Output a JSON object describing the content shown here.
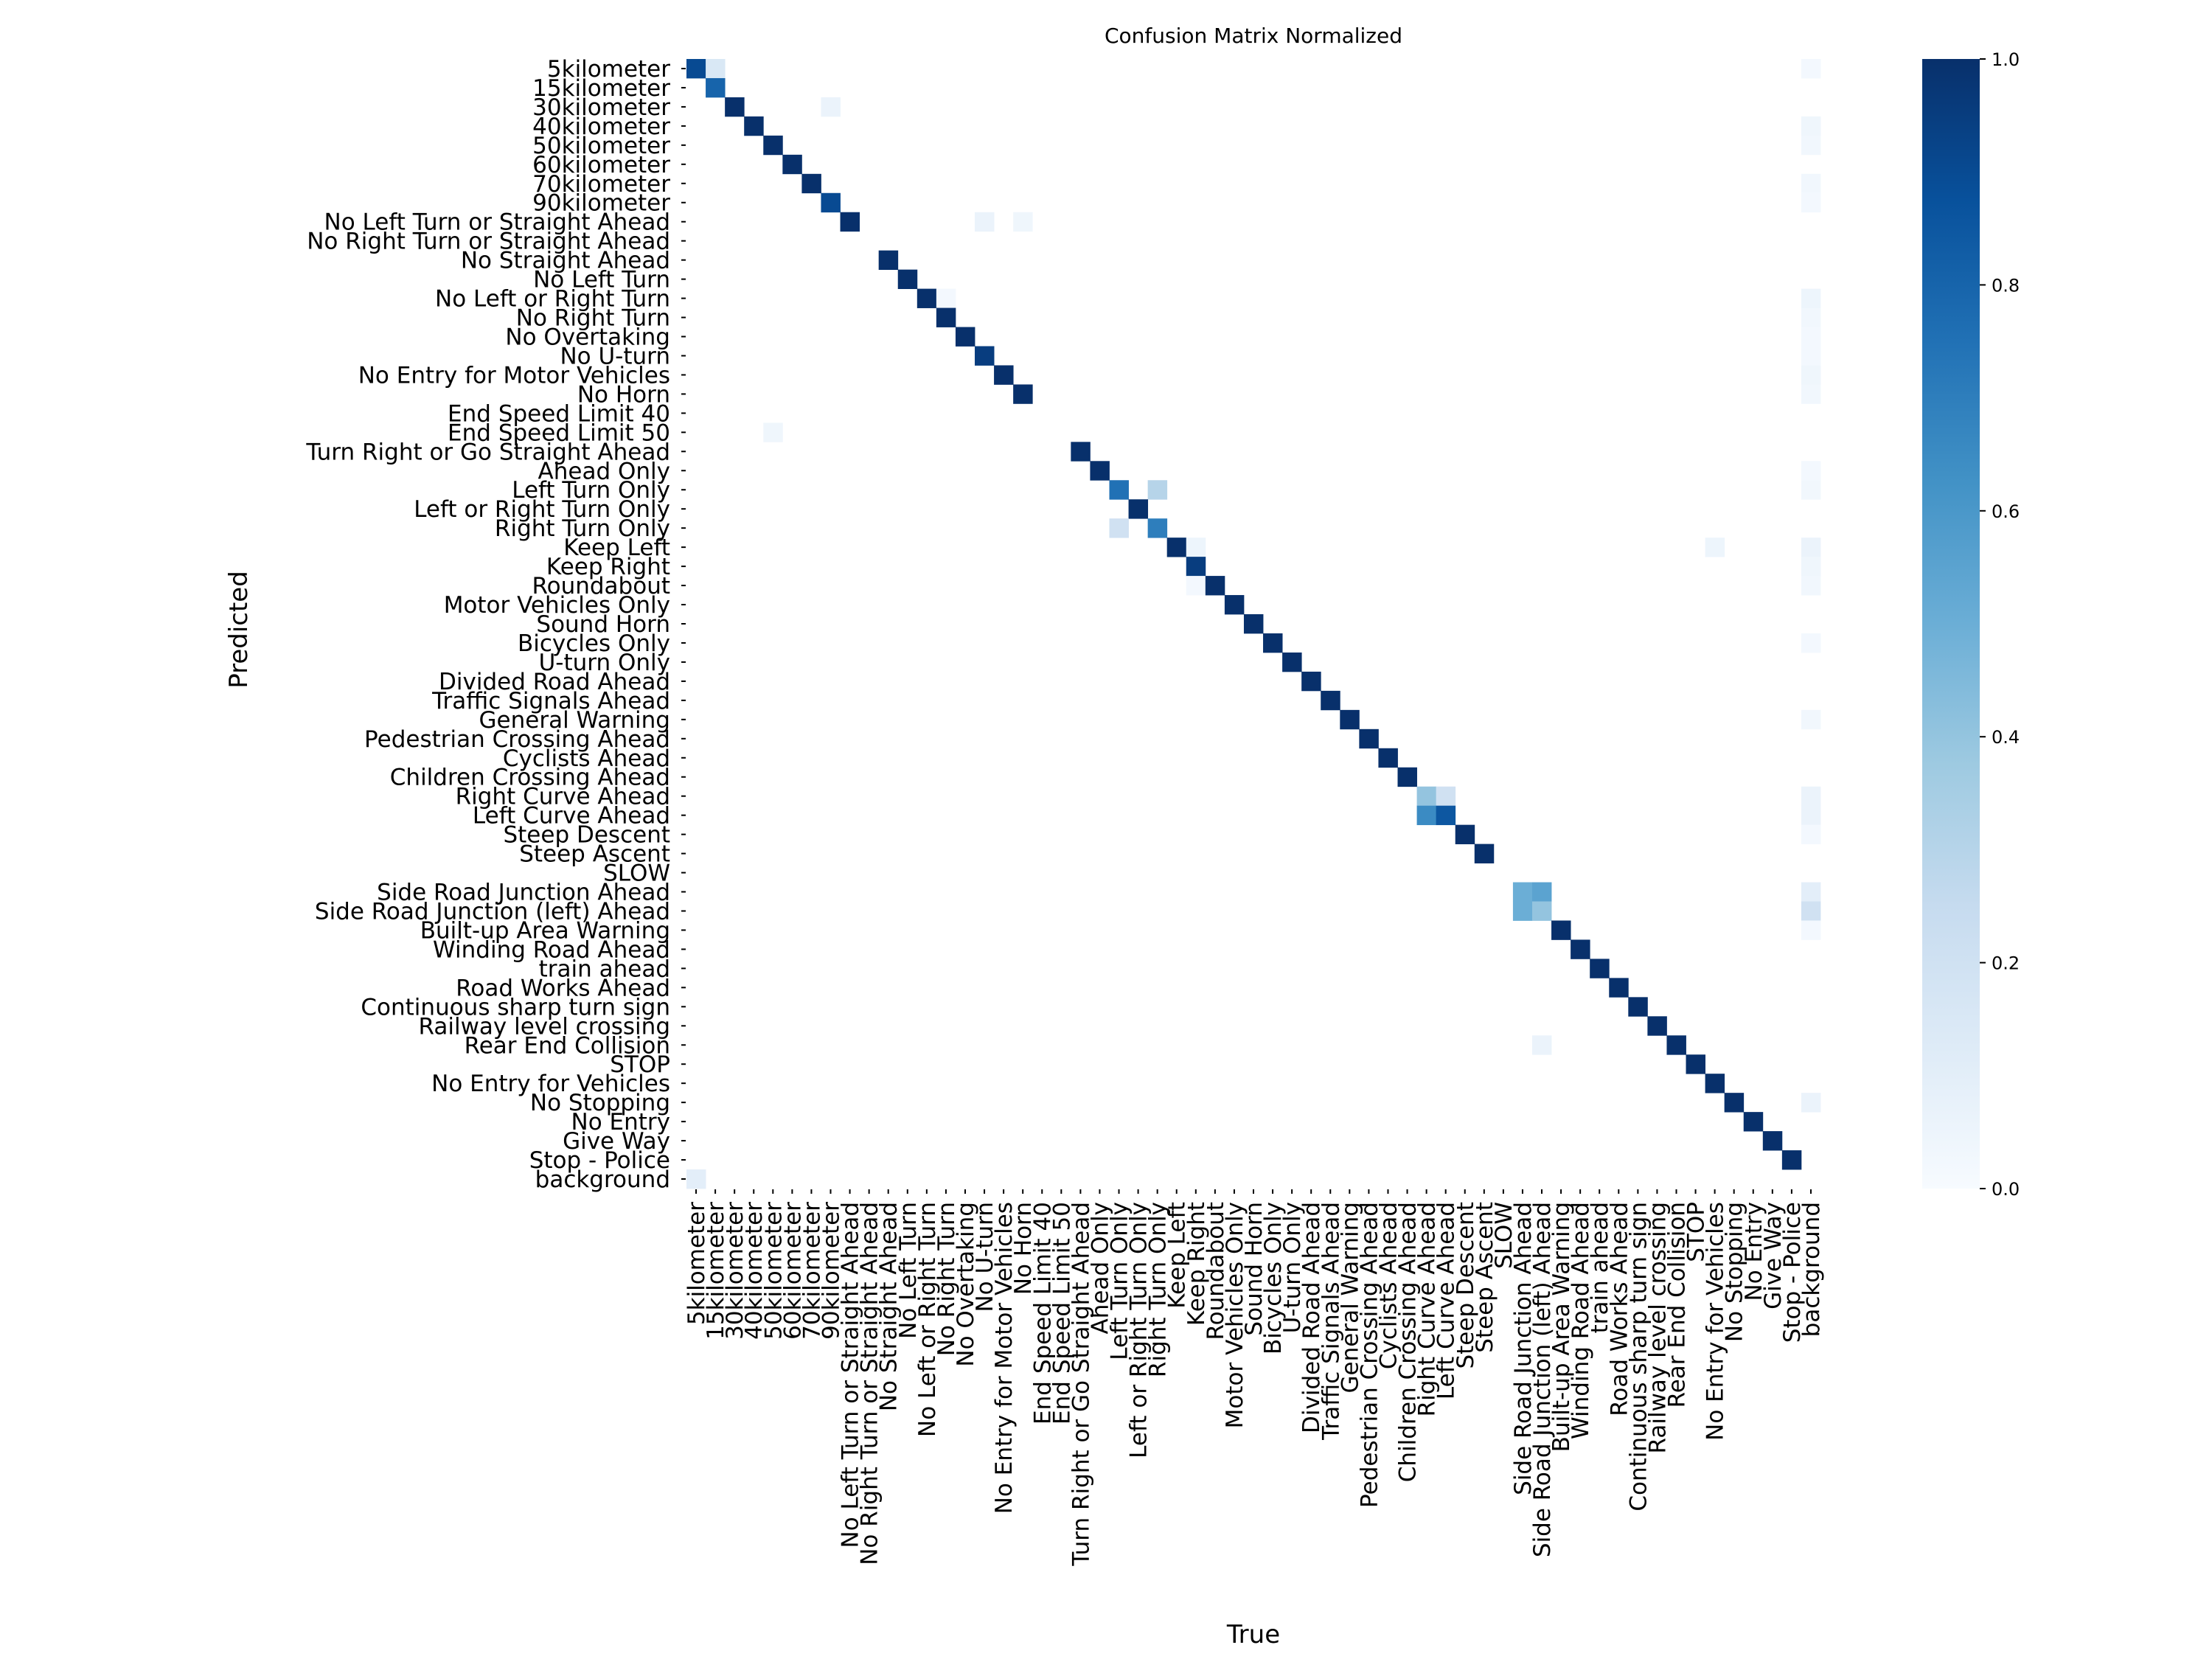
{
  "chart_data": {
    "type": "heatmap",
    "title": "Confusion Matrix Normalized",
    "xlabel": "True",
    "ylabel": "Predicted",
    "labels": [
      "5kilometer",
      "15kilometer",
      "30kilometer",
      "40kilometer",
      "50kilometer",
      "60kilometer",
      "70kilometer",
      "90kilometer",
      "No Left Turn or Straight Ahead",
      "No Right Turn or Straight Ahead",
      "No Straight Ahead",
      "No Left Turn",
      "No Left or Right Turn",
      "No Right Turn",
      "No Overtaking",
      "No U-turn",
      "No Entry for Motor Vehicles",
      "No Horn",
      "End Speed Limit 40",
      "End Speed Limit 50",
      "Turn Right or Go Straight Ahead",
      "Ahead Only",
      "Left Turn Only",
      "Left or Right Turn Only",
      "Right Turn Only",
      "Keep Left",
      "Keep Right",
      "Roundabout",
      "Motor Vehicles Only",
      "Sound Horn",
      "Bicycles Only",
      "U-turn Only",
      "Divided Road Ahead",
      "Traffic Signals Ahead",
      "General Warning",
      "Pedestrian Crossing Ahead",
      "Cyclists Ahead",
      "Children Crossing Ahead",
      "Right Curve Ahead",
      "Left Curve Ahead",
      "Steep Descent",
      "Steep Ascent",
      "SLOW",
      "Side Road Junction Ahead",
      "Side Road Junction (left) Ahead",
      "Built-up Area Warning",
      "Winding Road Ahead",
      "train ahead",
      "Road Works Ahead",
      "Continuous sharp turn sign",
      "Railway level crossing",
      "Rear End Collision",
      "STOP",
      "No Entry for Vehicles",
      "No Stopping",
      "No Entry",
      "Give Way",
      "Stop - Police",
      "background"
    ],
    "value_range": [
      0,
      1
    ],
    "colormap": "Blues",
    "colors": {
      "low": "#f7fbff",
      "high": "#08306b"
    },
    "colorbar": {
      "ticks": [
        "0.0",
        "0.2",
        "0.4",
        "0.6",
        "0.8",
        "1.0"
      ],
      "placement": "right"
    },
    "cells": [
      {
        "row": 0,
        "col": 0,
        "value": 0.9
      },
      {
        "row": 0,
        "col": 1,
        "value": 0.15
      },
      {
        "row": 0,
        "col": 58,
        "value": 0.02
      },
      {
        "row": 1,
        "col": 1,
        "value": 0.8
      },
      {
        "row": 2,
        "col": 2,
        "value": 1.0
      },
      {
        "row": 2,
        "col": 7,
        "value": 0.06
      },
      {
        "row": 3,
        "col": 3,
        "value": 1.0
      },
      {
        "row": 3,
        "col": 58,
        "value": 0.04
      },
      {
        "row": 4,
        "col": 4,
        "value": 1.0
      },
      {
        "row": 4,
        "col": 58,
        "value": 0.03
      },
      {
        "row": 5,
        "col": 5,
        "value": 1.0
      },
      {
        "row": 6,
        "col": 6,
        "value": 1.0
      },
      {
        "row": 6,
        "col": 58,
        "value": 0.03
      },
      {
        "row": 7,
        "col": 7,
        "value": 0.9
      },
      {
        "row": 7,
        "col": 58,
        "value": 0.02
      },
      {
        "row": 8,
        "col": 8,
        "value": 1.0
      },
      {
        "row": 8,
        "col": 15,
        "value": 0.06
      },
      {
        "row": 8,
        "col": 17,
        "value": 0.04
      },
      {
        "row": 10,
        "col": 10,
        "value": 1.0
      },
      {
        "row": 11,
        "col": 11,
        "value": 1.0
      },
      {
        "row": 12,
        "col": 12,
        "value": 1.0
      },
      {
        "row": 12,
        "col": 13,
        "value": 0.02
      },
      {
        "row": 12,
        "col": 58,
        "value": 0.05
      },
      {
        "row": 13,
        "col": 13,
        "value": 1.0
      },
      {
        "row": 13,
        "col": 58,
        "value": 0.03
      },
      {
        "row": 14,
        "col": 14,
        "value": 1.0
      },
      {
        "row": 14,
        "col": 58,
        "value": 0.02
      },
      {
        "row": 15,
        "col": 15,
        "value": 0.95
      },
      {
        "row": 15,
        "col": 58,
        "value": 0.02
      },
      {
        "row": 16,
        "col": 16,
        "value": 1.0
      },
      {
        "row": 16,
        "col": 58,
        "value": 0.04
      },
      {
        "row": 17,
        "col": 17,
        "value": 1.0
      },
      {
        "row": 17,
        "col": 58,
        "value": 0.03
      },
      {
        "row": 19,
        "col": 4,
        "value": 0.04
      },
      {
        "row": 20,
        "col": 20,
        "value": 1.0
      },
      {
        "row": 21,
        "col": 21,
        "value": 1.0
      },
      {
        "row": 21,
        "col": 58,
        "value": 0.02
      },
      {
        "row": 22,
        "col": 22,
        "value": 0.75
      },
      {
        "row": 22,
        "col": 24,
        "value": 0.3
      },
      {
        "row": 22,
        "col": 58,
        "value": 0.03
      },
      {
        "row": 23,
        "col": 23,
        "value": 1.0
      },
      {
        "row": 24,
        "col": 22,
        "value": 0.2
      },
      {
        "row": 24,
        "col": 24,
        "value": 0.7
      },
      {
        "row": 25,
        "col": 25,
        "value": 1.0
      },
      {
        "row": 25,
        "col": 26,
        "value": 0.05
      },
      {
        "row": 25,
        "col": 53,
        "value": 0.05
      },
      {
        "row": 25,
        "col": 58,
        "value": 0.06
      },
      {
        "row": 26,
        "col": 26,
        "value": 0.95
      },
      {
        "row": 26,
        "col": 58,
        "value": 0.04
      },
      {
        "row": 27,
        "col": 26,
        "value": 0.02
      },
      {
        "row": 27,
        "col": 27,
        "value": 1.0
      },
      {
        "row": 27,
        "col": 58,
        "value": 0.03
      },
      {
        "row": 28,
        "col": 28,
        "value": 1.0
      },
      {
        "row": 29,
        "col": 29,
        "value": 1.0
      },
      {
        "row": 30,
        "col": 30,
        "value": 1.0
      },
      {
        "row": 30,
        "col": 58,
        "value": 0.02
      },
      {
        "row": 31,
        "col": 31,
        "value": 1.0
      },
      {
        "row": 32,
        "col": 32,
        "value": 1.0
      },
      {
        "row": 33,
        "col": 33,
        "value": 1.0
      },
      {
        "row": 34,
        "col": 34,
        "value": 1.0
      },
      {
        "row": 34,
        "col": 58,
        "value": 0.03
      },
      {
        "row": 35,
        "col": 35,
        "value": 1.0
      },
      {
        "row": 36,
        "col": 36,
        "value": 1.0
      },
      {
        "row": 37,
        "col": 37,
        "value": 1.0
      },
      {
        "row": 38,
        "col": 38,
        "value": 0.4
      },
      {
        "row": 38,
        "col": 39,
        "value": 0.2
      },
      {
        "row": 38,
        "col": 58,
        "value": 0.06
      },
      {
        "row": 39,
        "col": 38,
        "value": 0.65
      },
      {
        "row": 39,
        "col": 39,
        "value": 0.85
      },
      {
        "row": 39,
        "col": 58,
        "value": 0.06
      },
      {
        "row": 40,
        "col": 40,
        "value": 1.0
      },
      {
        "row": 40,
        "col": 58,
        "value": 0.02
      },
      {
        "row": 41,
        "col": 41,
        "value": 1.0
      },
      {
        "row": 43,
        "col": 43,
        "value": 0.5
      },
      {
        "row": 43,
        "col": 44,
        "value": 0.55
      },
      {
        "row": 43,
        "col": 58,
        "value": 0.1
      },
      {
        "row": 44,
        "col": 43,
        "value": 0.5
      },
      {
        "row": 44,
        "col": 44,
        "value": 0.4
      },
      {
        "row": 44,
        "col": 58,
        "value": 0.2
      },
      {
        "row": 45,
        "col": 45,
        "value": 1.0
      },
      {
        "row": 45,
        "col": 58,
        "value": 0.02
      },
      {
        "row": 46,
        "col": 46,
        "value": 1.0
      },
      {
        "row": 47,
        "col": 47,
        "value": 1.0
      },
      {
        "row": 48,
        "col": 48,
        "value": 1.0
      },
      {
        "row": 49,
        "col": 49,
        "value": 1.0
      },
      {
        "row": 50,
        "col": 50,
        "value": 1.0
      },
      {
        "row": 51,
        "col": 44,
        "value": 0.06
      },
      {
        "row": 51,
        "col": 51,
        "value": 1.0
      },
      {
        "row": 52,
        "col": 52,
        "value": 1.0
      },
      {
        "row": 53,
        "col": 53,
        "value": 1.0
      },
      {
        "row": 54,
        "col": 54,
        "value": 1.0
      },
      {
        "row": 54,
        "col": 58,
        "value": 0.06
      },
      {
        "row": 55,
        "col": 55,
        "value": 1.0
      },
      {
        "row": 56,
        "col": 56,
        "value": 1.0
      },
      {
        "row": 57,
        "col": 57,
        "value": 1.0
      },
      {
        "row": 58,
        "col": 0,
        "value": 0.1
      }
    ]
  }
}
